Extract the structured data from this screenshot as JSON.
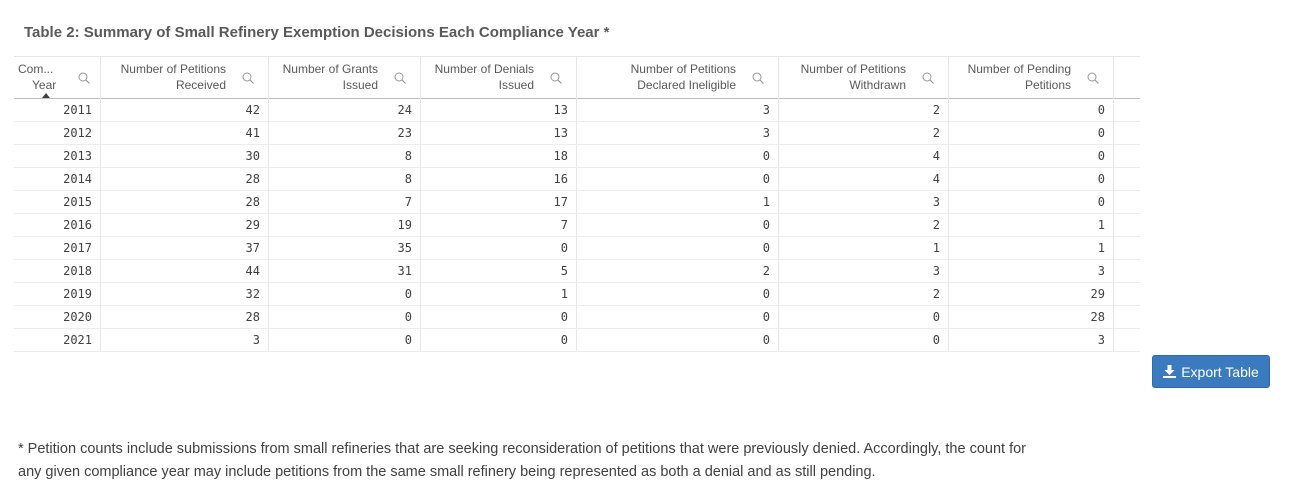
{
  "title": "Table 2: Summary of Small Refinery Exemption Decisions Each Compliance Year *",
  "table": {
    "headers": [
      [
        "Com...",
        "Year"
      ],
      [
        "Number of Petitions",
        "Received"
      ],
      [
        "Number of Grants",
        "Issued"
      ],
      [
        "Number of Denials",
        "Issued"
      ],
      [
        "Number of Petitions",
        "Declared Ineligible"
      ],
      [
        "Number of Petitions",
        "Withdrawn"
      ],
      [
        "Number of Pending",
        "Petitions"
      ]
    ],
    "rows": [
      [
        2011,
        42,
        24,
        13,
        3,
        2,
        0
      ],
      [
        2012,
        41,
        23,
        13,
        3,
        2,
        0
      ],
      [
        2013,
        30,
        8,
        18,
        0,
        4,
        0
      ],
      [
        2014,
        28,
        8,
        16,
        0,
        4,
        0
      ],
      [
        2015,
        28,
        7,
        17,
        1,
        3,
        0
      ],
      [
        2016,
        29,
        19,
        7,
        0,
        2,
        1
      ],
      [
        2017,
        37,
        35,
        0,
        0,
        1,
        1
      ],
      [
        2018,
        44,
        31,
        5,
        2,
        3,
        3
      ],
      [
        2019,
        32,
        0,
        1,
        0,
        2,
        29
      ],
      [
        2020,
        28,
        0,
        0,
        0,
        0,
        28
      ],
      [
        2021,
        3,
        0,
        0,
        0,
        0,
        3
      ]
    ]
  },
  "button": "Export Table",
  "footnote": [
    "* Petition counts include submissions from small refineries that are seeking reconsideration of petitions that were previously denied. Accordingly, the count for",
    "any given compliance year may include petitions from the same small refinery being represented as both a denial and as still pending."
  ]
}
